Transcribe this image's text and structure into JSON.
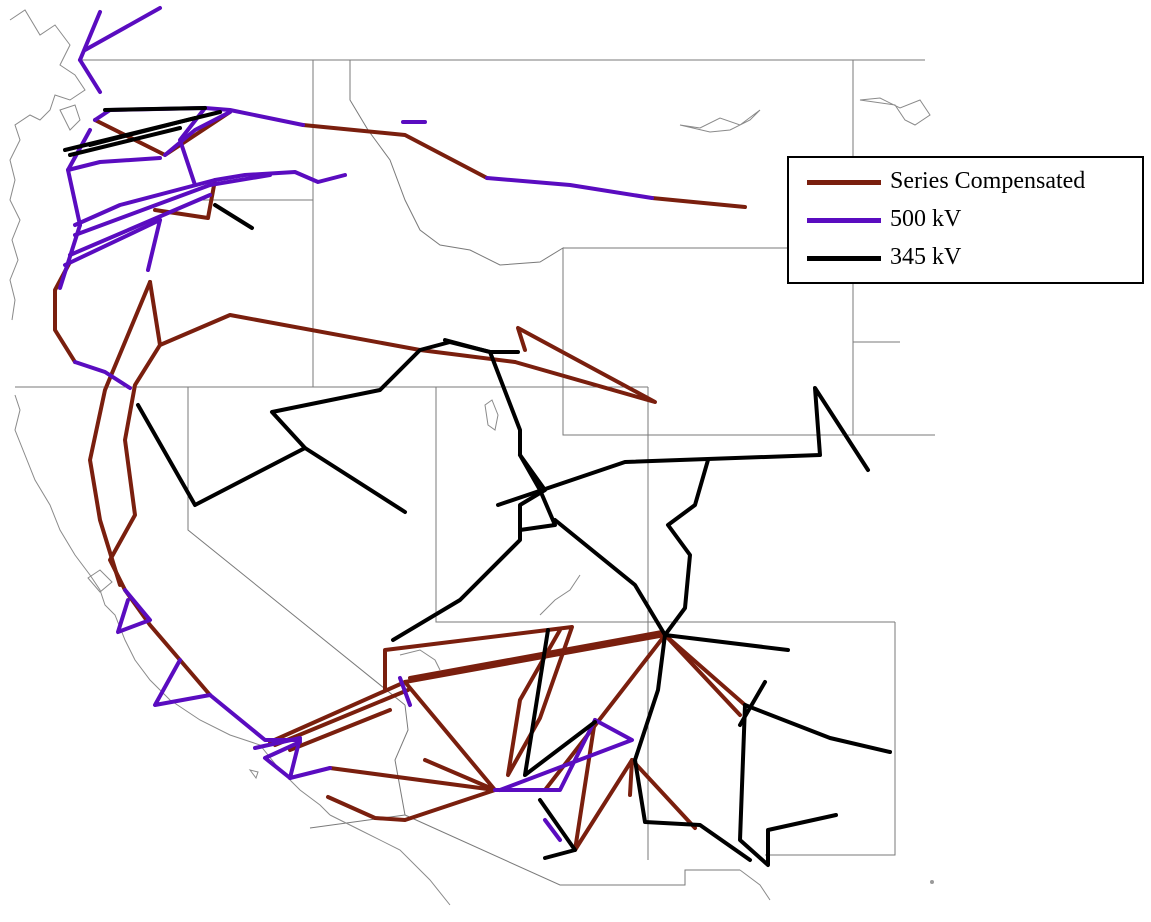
{
  "legend": {
    "items": [
      {
        "label": "Series Compensated",
        "color": "#7a1f0e"
      },
      {
        "label": "500 kV",
        "color": "#5a0cc0"
      },
      {
        "label": "345 kV",
        "color": "#000000"
      }
    ]
  },
  "colors": {
    "series_compensated": "#7a1f0e",
    "kv500": "#5a0cc0",
    "kv345": "#000000",
    "state_borders": "#7a7a7a",
    "coastline": "#8a8a8a"
  }
}
